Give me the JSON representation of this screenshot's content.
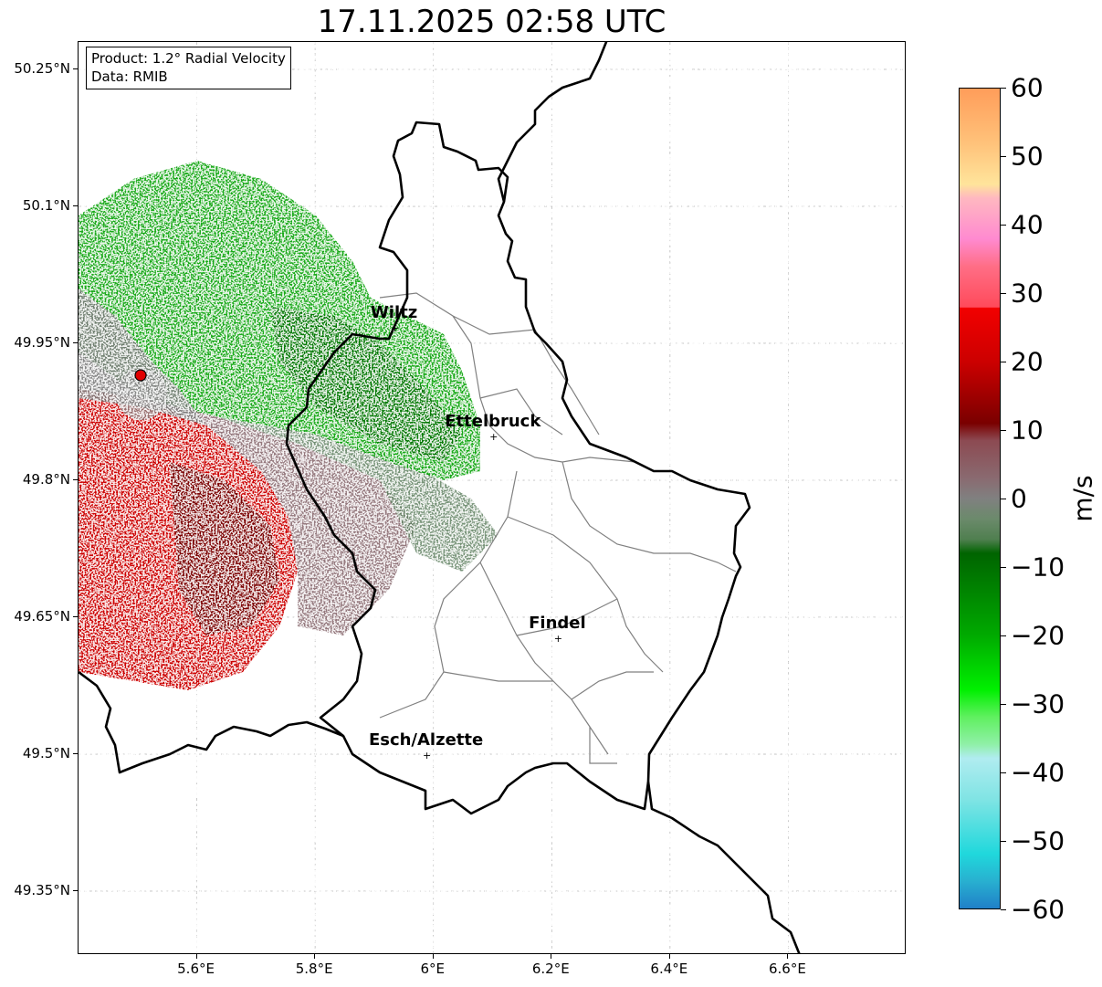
{
  "title": "17.11.2025 02:58 UTC",
  "info_box": {
    "product": "Product: 1.2° Radial Velocity",
    "data": "Data: RMIB"
  },
  "map": {
    "lon_range": [
      5.4,
      6.8
    ],
    "lat_range": [
      49.28,
      50.28
    ],
    "y_ticks": [
      {
        "value": 50.25,
        "label": "50.25°N"
      },
      {
        "value": 50.1,
        "label": "50.1°N"
      },
      {
        "value": 49.95,
        "label": "49.95°N"
      },
      {
        "value": 49.8,
        "label": "49.8°N"
      },
      {
        "value": 49.65,
        "label": "49.65°N"
      },
      {
        "value": 49.5,
        "label": "49.5°N"
      },
      {
        "value": 49.35,
        "label": "49.35°N"
      }
    ],
    "x_ticks": [
      {
        "value": 5.6,
        "label": "5.6°E"
      },
      {
        "value": 5.8,
        "label": "5.8°E"
      },
      {
        "value": 6.0,
        "label": "6°E"
      },
      {
        "value": 6.2,
        "label": "6.2°E"
      },
      {
        "value": 6.4,
        "label": "6.4°E"
      },
      {
        "value": 6.6,
        "label": "6.6°E"
      }
    ],
    "grid": true,
    "radar_site": {
      "lon": 5.505,
      "lat": 49.915,
      "color": "#e00000"
    },
    "cities": [
      {
        "name": "Wiltz",
        "lon": 5.935,
        "lat": 49.967
      },
      {
        "name": "Ettelbruck",
        "lon": 6.102,
        "lat": 49.848
      },
      {
        "name": "Findel",
        "lon": 6.211,
        "lat": 49.627
      },
      {
        "name": "Esch/Alzette",
        "lon": 5.989,
        "lat": 49.499
      }
    ]
  },
  "colorbar": {
    "unit": "m/s",
    "min": -60,
    "max": 60,
    "ticks": [
      {
        "value": 60,
        "label": "60"
      },
      {
        "value": 50,
        "label": "50"
      },
      {
        "value": 40,
        "label": "40"
      },
      {
        "value": 30,
        "label": "30"
      },
      {
        "value": 20,
        "label": "20"
      },
      {
        "value": 10,
        "label": "10"
      },
      {
        "value": 0,
        "label": "0"
      },
      {
        "value": -10,
        "label": "−10"
      },
      {
        "value": -20,
        "label": "−20"
      },
      {
        "value": -30,
        "label": "−30"
      },
      {
        "value": -40,
        "label": "−40"
      },
      {
        "value": -50,
        "label": "−50"
      },
      {
        "value": -60,
        "label": "−60"
      }
    ],
    "stops": [
      {
        "value": 60,
        "color": "#ff9d5a"
      },
      {
        "value": 52,
        "color": "#ffc27a"
      },
      {
        "value": 46,
        "color": "#ffe49b"
      },
      {
        "value": 44,
        "color": "#ffb8c0"
      },
      {
        "value": 38,
        "color": "#ff8ad0"
      },
      {
        "value": 34,
        "color": "#ff6e86"
      },
      {
        "value": 28,
        "color": "#ff4a5a"
      },
      {
        "value": 27.9,
        "color": "#f20000"
      },
      {
        "value": 20,
        "color": "#cc0000"
      },
      {
        "value": 11,
        "color": "#7a0000"
      },
      {
        "value": 8.5,
        "color": "#8c4a52"
      },
      {
        "value": 3,
        "color": "#8a6a70"
      },
      {
        "value": 0,
        "color": "#808080"
      },
      {
        "value": -3,
        "color": "#6b8a6b"
      },
      {
        "value": -6,
        "color": "#4f7f4f"
      },
      {
        "value": -8,
        "color": "#006400"
      },
      {
        "value": -20,
        "color": "#00aa00"
      },
      {
        "value": -28,
        "color": "#00f000"
      },
      {
        "value": -32,
        "color": "#60f060"
      },
      {
        "value": -36,
        "color": "#90f0a8"
      },
      {
        "value": -38,
        "color": "#b0ecf0"
      },
      {
        "value": -44,
        "color": "#80e4e4"
      },
      {
        "value": -52,
        "color": "#20d8dc"
      },
      {
        "value": -56,
        "color": "#28b0d0"
      },
      {
        "value": -60,
        "color": "#2080c8"
      }
    ]
  }
}
